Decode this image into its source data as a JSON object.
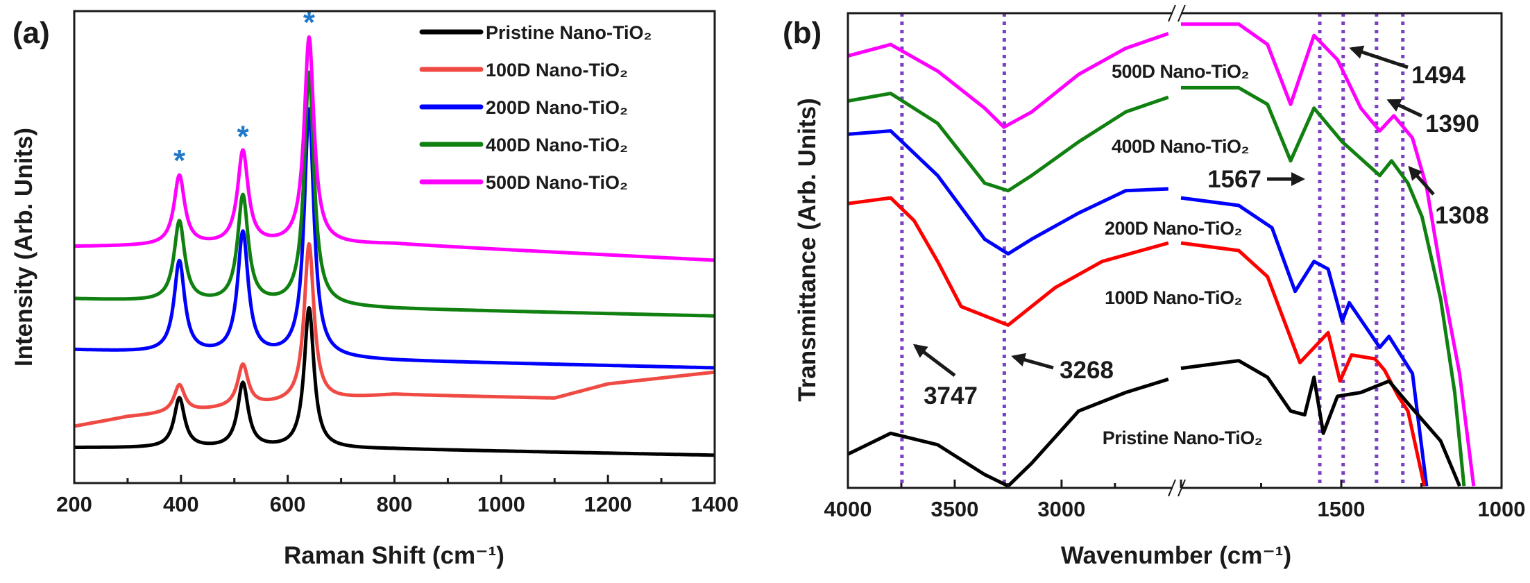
{
  "chart_data": [
    {
      "panel_label": "(a)",
      "type": "line",
      "xlabel": "Raman Shift (cm⁻¹)",
      "ylabel": "Intensity (Arb. Units)",
      "xlim": [
        200,
        1400
      ],
      "ylim": [
        0,
        100
      ],
      "x_ticks": [
        "200",
        "400",
        "600",
        "800",
        "1000",
        "1200",
        "1400"
      ],
      "y_ticks": [],
      "grid": false,
      "legend_placement": "top-right",
      "peak_marker": "*",
      "peak_marker_color": "#1f78c8",
      "marked_peaks": [
        397,
        516,
        640
      ],
      "series": [
        {
          "name": "Pristine Nano-TiO₂",
          "color": "#000000",
          "baseline": [
            [
              200,
              7.5
            ],
            [
              800,
              7.2
            ],
            [
              1400,
              5.9
            ]
          ],
          "peaks": [
            {
              "x": 397,
              "y": 17.9
            },
            {
              "x": 516,
              "y": 21.0
            },
            {
              "x": 640,
              "y": 37.0
            }
          ]
        },
        {
          "name": "100D Nano-TiO₂",
          "color": "#ef4a43",
          "baseline": [
            [
              200,
              12.0
            ],
            [
              300,
              14.0
            ],
            [
              800,
              18.7
            ],
            [
              1100,
              18.0
            ],
            [
              1200,
              21.0
            ],
            [
              1400,
              23.5
            ]
          ],
          "peaks": [
            {
              "x": 397,
              "y": 20.7
            },
            {
              "x": 516,
              "y": 24.9
            },
            {
              "x": 640,
              "y": 50.6
            }
          ]
        },
        {
          "name": "200D Nano-TiO₂",
          "color": "#0000ff",
          "baseline": [
            [
              200,
              28.2
            ],
            [
              800,
              25.9
            ],
            [
              1400,
              24.4
            ]
          ],
          "peaks": [
            {
              "x": 397,
              "y": 46.8
            },
            {
              "x": 516,
              "y": 52.8
            },
            {
              "x": 640,
              "y": 79.0
            }
          ]
        },
        {
          "name": "400D Nano-TiO₂",
          "color": "#108010",
          "baseline": [
            [
              200,
              39.0
            ],
            [
              800,
              36.9
            ],
            [
              1400,
              35.4
            ]
          ],
          "peaks": [
            {
              "x": 397,
              "y": 55.3
            },
            {
              "x": 516,
              "y": 60.6
            },
            {
              "x": 640,
              "y": 86.8
            }
          ]
        },
        {
          "name": "500D Nano-TiO₂",
          "color": "#ff00ff",
          "baseline": [
            [
              200,
              50.1
            ],
            [
              800,
              50.6
            ],
            [
              1400,
              47.2
            ]
          ],
          "peaks": [
            {
              "x": 397,
              "y": 65.0
            },
            {
              "x": 516,
              "y": 70.1
            },
            {
              "x": 640,
              "y": 94.3
            }
          ]
        }
      ]
    },
    {
      "panel_label": "(b)",
      "type": "line",
      "xlabel": "Wavenumber (cm⁻¹)",
      "ylabel": "Transmittance (Arb. Units)",
      "x_reversed": true,
      "x_axis_break": [
        2480,
        2000
      ],
      "xlim_segments": [
        [
          4000,
          2480
        ],
        [
          2000,
          1000
        ]
      ],
      "ylim": [
        0,
        100
      ],
      "x_ticks": [
        "4000",
        "3500",
        "3000",
        "1500",
        "1000"
      ],
      "grid": false,
      "marker_line_color": "#7b3fc4",
      "marker_lines": [
        {
          "x": 3747,
          "label": "3747"
        },
        {
          "x": 3268,
          "label": "3268"
        },
        {
          "x": 1567,
          "label": "1567"
        },
        {
          "x": 1494,
          "label": "1494"
        },
        {
          "x": 1390,
          "label": "1390"
        },
        {
          "x": 1308,
          "label": "1308"
        }
      ],
      "series": [
        {
          "name": "500D Nano-TiO₂",
          "color": "#ff00ff",
          "points": [
            [
              4000,
              91.0
            ],
            [
              3800,
              93.4
            ],
            [
              3580,
              87.8
            ],
            [
              3360,
              80.0
            ],
            [
              3270,
              76.0
            ],
            [
              3140,
              79.2
            ],
            [
              2920,
              87.1
            ],
            [
              2700,
              92.6
            ],
            [
              2500,
              95.7
            ],
            [
              2000,
              97.7
            ],
            [
              1820,
              97.7
            ],
            [
              1730,
              93.4
            ],
            [
              1658,
              80.8
            ],
            [
              1585,
              95.3
            ],
            [
              1512,
              90.2
            ],
            [
              1439,
              80.0
            ],
            [
              1380,
              75.2
            ],
            [
              1336,
              78.4
            ],
            [
              1278,
              73.7
            ],
            [
              1234,
              63.4
            ],
            [
              1175,
              39.8
            ],
            [
              1131,
              24.1
            ],
            [
              1087,
              0.4
            ]
          ]
        },
        {
          "name": "400D Nano-TiO₂",
          "color": "#108010",
          "points": [
            [
              4000,
              81.5
            ],
            [
              3800,
              83.1
            ],
            [
              3580,
              76.8
            ],
            [
              3360,
              64.2
            ],
            [
              3250,
              62.6
            ],
            [
              3140,
              65.8
            ],
            [
              2920,
              72.9
            ],
            [
              2700,
              79.2
            ],
            [
              2500,
              82.3
            ],
            [
              2000,
              84.3
            ],
            [
              1820,
              84.3
            ],
            [
              1730,
              80.8
            ],
            [
              1658,
              68.9
            ],
            [
              1585,
              80.0
            ],
            [
              1497,
              72.9
            ],
            [
              1380,
              65.8
            ],
            [
              1343,
              68.9
            ],
            [
              1292,
              64.2
            ],
            [
              1248,
              57.1
            ],
            [
              1190,
              39.8
            ],
            [
              1146,
              20.1
            ],
            [
              1117,
              0.4
            ]
          ]
        },
        {
          "name": "200D Nano-TiO₂",
          "color": "#0000ff",
          "points": [
            [
              4000,
              74.5
            ],
            [
              3800,
              75.2
            ],
            [
              3580,
              65.8
            ],
            [
              3360,
              52.4
            ],
            [
              3250,
              49.3
            ],
            [
              3140,
              52.4
            ],
            [
              2920,
              57.9
            ],
            [
              2700,
              62.6
            ],
            [
              2500,
              63.0
            ],
            [
              2000,
              61.1
            ],
            [
              1820,
              59.5
            ],
            [
              1716,
              54.8
            ],
            [
              1644,
              41.4
            ],
            [
              1585,
              47.7
            ],
            [
              1541,
              46.1
            ],
            [
              1497,
              35.1
            ],
            [
              1475,
              39.0
            ],
            [
              1380,
              29.6
            ],
            [
              1351,
              31.9
            ],
            [
              1278,
              24.1
            ],
            [
              1234,
              0.4
            ]
          ]
        },
        {
          "name": "100D Nano-TiO₂",
          "color": "#ff0000",
          "points": [
            [
              4000,
              59.9
            ],
            [
              3800,
              61.1
            ],
            [
              3690,
              56.3
            ],
            [
              3580,
              47.7
            ],
            [
              3470,
              38.2
            ],
            [
              3250,
              34.3
            ],
            [
              3030,
              42.2
            ],
            [
              2810,
              47.7
            ],
            [
              2500,
              51.6
            ],
            [
              2000,
              51.6
            ],
            [
              1820,
              50.0
            ],
            [
              1730,
              44.5
            ],
            [
              1629,
              26.4
            ],
            [
              1541,
              32.7
            ],
            [
              1504,
              22.5
            ],
            [
              1468,
              28.0
            ],
            [
              1395,
              27.2
            ],
            [
              1365,
              24.8
            ],
            [
              1322,
              19.3
            ],
            [
              1292,
              16.2
            ],
            [
              1241,
              0.4
            ]
          ]
        },
        {
          "name": "Pristine Nano-TiO₂",
          "color": "#000000",
          "points": [
            [
              4000,
              7.1
            ],
            [
              3800,
              11.5
            ],
            [
              3580,
              9.1
            ],
            [
              3360,
              2.8
            ],
            [
              3250,
              0.4
            ],
            [
              3140,
              5.2
            ],
            [
              2920,
              16.2
            ],
            [
              2700,
              20.1
            ],
            [
              2500,
              22.9
            ],
            [
              2000,
              25.2
            ],
            [
              1820,
              26.8
            ],
            [
              1730,
              23.3
            ],
            [
              1658,
              16.2
            ],
            [
              1614,
              15.4
            ],
            [
              1585,
              23.3
            ],
            [
              1556,
              11.5
            ],
            [
              1512,
              19.3
            ],
            [
              1439,
              20.1
            ],
            [
              1351,
              22.5
            ],
            [
              1292,
              17.8
            ],
            [
              1190,
              9.9
            ],
            [
              1131,
              0.4
            ]
          ]
        }
      ]
    }
  ]
}
